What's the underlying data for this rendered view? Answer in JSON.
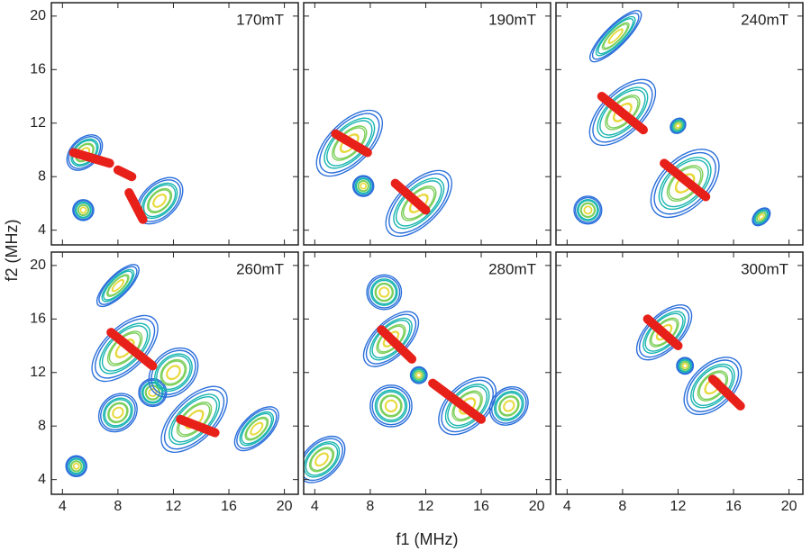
{
  "chart_data": {
    "type": "contour",
    "xlabel": "f1 (MHz)",
    "ylabel": "f2 (MHz)",
    "xlim": [
      3.2,
      21
    ],
    "ylim": [
      2.9,
      21
    ],
    "xticks": [
      4,
      8,
      12,
      16,
      20
    ],
    "yticks": [
      4,
      8,
      12,
      16,
      20
    ],
    "contour_colors": [
      "#2a6fdb",
      "#19b5b0",
      "#7ccf5a",
      "#e8d93a"
    ],
    "ridge_color": "#e8201a",
    "panels": [
      {
        "label": "170mT",
        "peaks": [
          {
            "x": 5.6,
            "y": 9.8,
            "length": 3,
            "width": 2
          },
          {
            "x": 11,
            "y": 6.2,
            "length": 4,
            "width": 2.5
          },
          {
            "x": 5.5,
            "y": 5.5,
            "length": 1.5,
            "width": 1.5
          }
        ],
        "ridges": [
          {
            "x": [
              4.8,
              7.4
            ],
            "y": [
              9.8,
              9
            ]
          },
          {
            "x": [
              8,
              9
            ],
            "y": [
              8.5,
              8
            ]
          },
          {
            "x": [
              8.8,
              9.8
            ],
            "y": [
              6.8,
              4.8
            ]
          }
        ]
      },
      {
        "label": "190mT",
        "peaks": [
          {
            "x": 6.5,
            "y": 10.5,
            "length": 6,
            "width": 3
          },
          {
            "x": 7.5,
            "y": 7.3,
            "length": 1.5,
            "width": 1.5
          },
          {
            "x": 11.5,
            "y": 6,
            "length": 6,
            "width": 3
          }
        ],
        "ridges": [
          {
            "x": [
              5.5,
              7.8
            ],
            "y": [
              11.2,
              9.8
            ]
          },
          {
            "x": [
              9.8,
              12
            ],
            "y": [
              7.5,
              5.5
            ]
          }
        ]
      },
      {
        "label": "240mT",
        "peaks": [
          {
            "x": 8,
            "y": 12.8,
            "length": 6,
            "width": 3
          },
          {
            "x": 12.5,
            "y": 7.5,
            "length": 6,
            "width": 3.5
          },
          {
            "x": 5.5,
            "y": 5.5,
            "length": 2,
            "width": 2
          },
          {
            "x": 7.5,
            "y": 18.5,
            "length": 5,
            "width": 1.5
          },
          {
            "x": 12,
            "y": 11.8,
            "length": 1.2,
            "width": 1
          },
          {
            "x": 18,
            "y": 5,
            "length": 1.5,
            "width": 1
          }
        ],
        "ridges": [
          {
            "x": [
              6.5,
              9.5
            ],
            "y": [
              14,
              11.5
            ]
          },
          {
            "x": [
              11,
              14
            ],
            "y": [
              9,
              6.5
            ]
          }
        ]
      },
      {
        "label": "260mT",
        "peaks": [
          {
            "x": 8.5,
            "y": 13.8,
            "length": 6,
            "width": 3
          },
          {
            "x": 10.5,
            "y": 10.5,
            "length": 2,
            "width": 2
          },
          {
            "x": 13.5,
            "y": 8.5,
            "length": 6,
            "width": 3
          },
          {
            "x": 8,
            "y": 9,
            "length": 3,
            "width": 2.5
          },
          {
            "x": 8,
            "y": 18.5,
            "length": 4,
            "width": 1.5
          },
          {
            "x": 18,
            "y": 7.8,
            "length": 4,
            "width": 2
          },
          {
            "x": 5,
            "y": 5,
            "length": 1.5,
            "width": 1.5
          },
          {
            "x": 12,
            "y": 12,
            "length": 4,
            "width": 3
          }
        ],
        "ridges": [
          {
            "x": [
              7.5,
              10.5
            ],
            "y": [
              15,
              12.5
            ]
          },
          {
            "x": [
              12.5,
              15
            ],
            "y": [
              8.5,
              7.5
            ]
          }
        ]
      },
      {
        "label": "280mT",
        "peaks": [
          {
            "x": 9.5,
            "y": 14.5,
            "length": 5,
            "width": 2.5
          },
          {
            "x": 9,
            "y": 18,
            "length": 2.5,
            "width": 2.5
          },
          {
            "x": 9.5,
            "y": 9.5,
            "length": 3,
            "width": 3
          },
          {
            "x": 15,
            "y": 9.5,
            "length": 5,
            "width": 3
          },
          {
            "x": 18,
            "y": 9.5,
            "length": 3,
            "width": 2.5
          },
          {
            "x": 11.5,
            "y": 11.8,
            "length": 1.2,
            "width": 1.2
          },
          {
            "x": 4.5,
            "y": 5.5,
            "length": 4,
            "width": 2.5
          }
        ],
        "ridges": [
          {
            "x": [
              8.8,
              11
            ],
            "y": [
              15.2,
              13
            ]
          },
          {
            "x": [
              12.5,
              16
            ],
            "y": [
              11.2,
              8.5
            ]
          }
        ]
      },
      {
        "label": "300mT",
        "peaks": [
          {
            "x": 11,
            "y": 15,
            "length": 5,
            "width": 2.5
          },
          {
            "x": 14.5,
            "y": 11,
            "length": 5,
            "width": 3
          },
          {
            "x": 12.5,
            "y": 12.5,
            "length": 1.2,
            "width": 1.2
          }
        ],
        "ridges": [
          {
            "x": [
              9.8,
              12
            ],
            "y": [
              16,
              14
            ]
          },
          {
            "x": [
              14.5,
              16.5
            ],
            "y": [
              11.5,
              9.5
            ]
          }
        ]
      }
    ]
  }
}
